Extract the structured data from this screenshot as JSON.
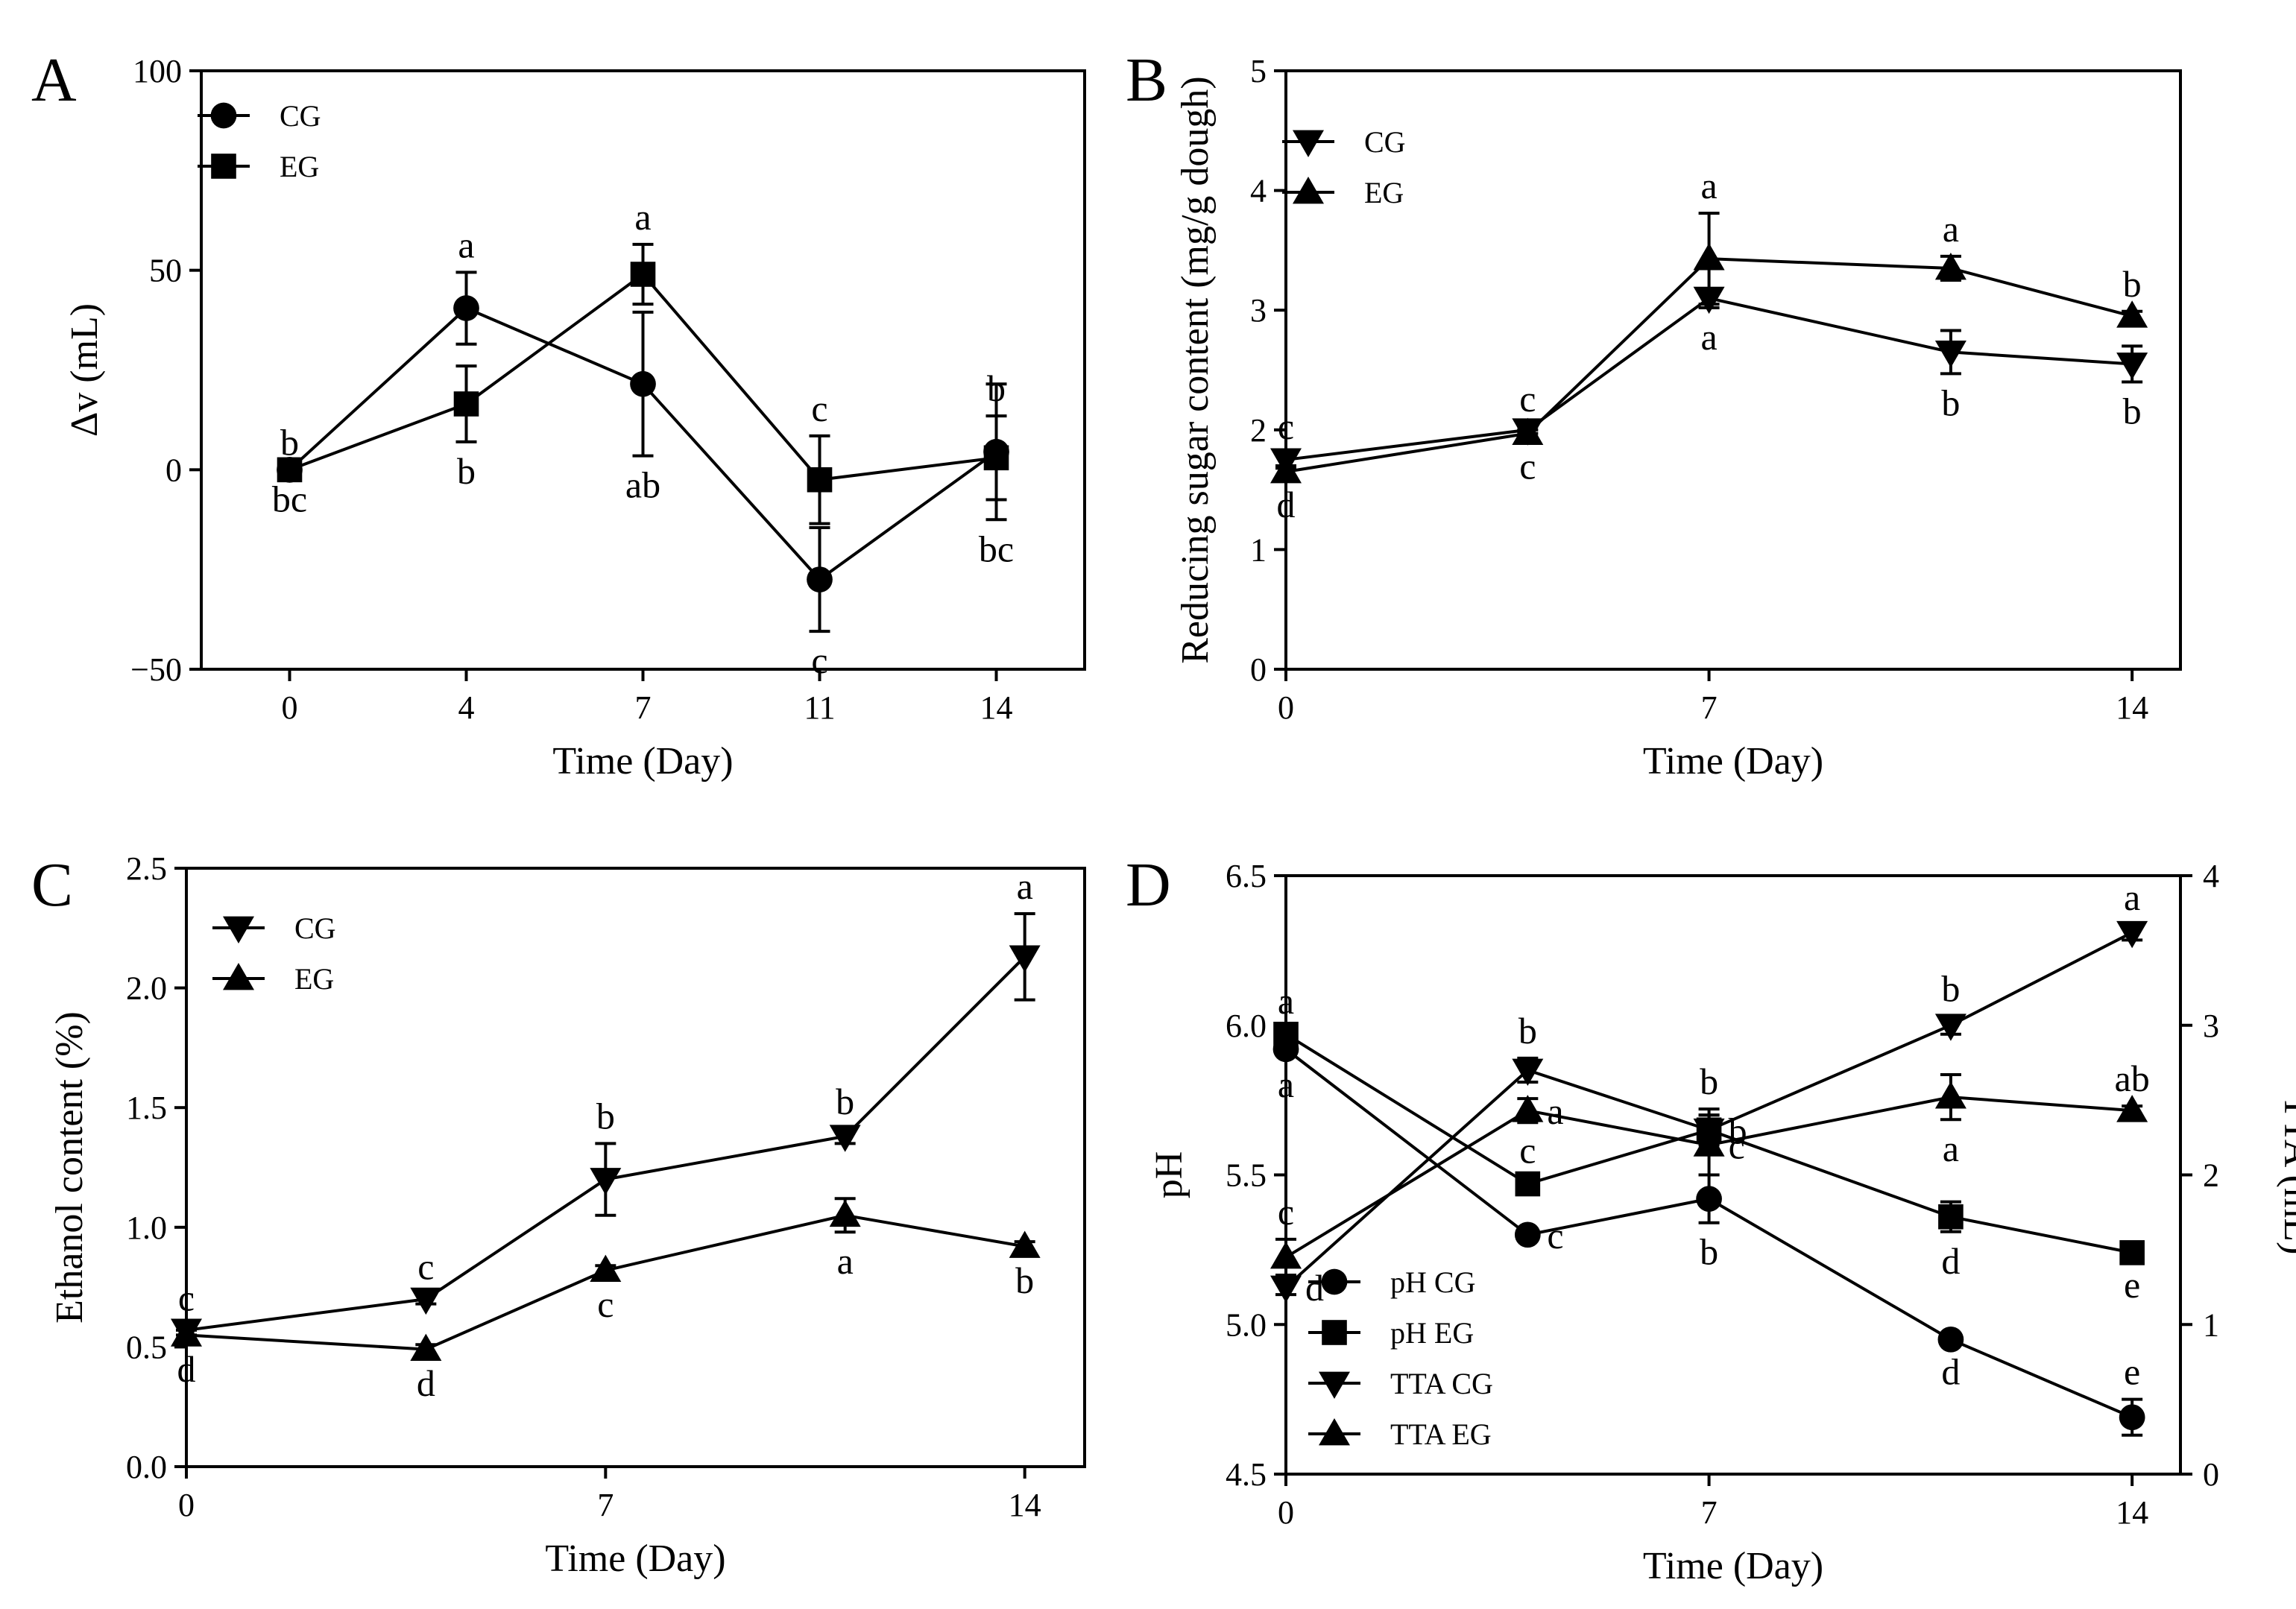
{
  "chart_data": [
    {
      "panel": "A",
      "type": "line",
      "xlabel": "Time (Day)",
      "ylabel": "Δv (mL)",
      "x_ticks": [
        0,
        4,
        7,
        11,
        14
      ],
      "y_ticks": [
        -50,
        0,
        50,
        100
      ],
      "xlim": [
        0,
        4
      ],
      "ylim": [
        -50,
        100
      ],
      "x_mode": "categorical",
      "reference_line": -50,
      "legend": [
        {
          "name": "CG",
          "marker": "circle"
        },
        {
          "name": "EG",
          "marker": "square"
        }
      ],
      "series": [
        {
          "name": "CG",
          "marker": "circle",
          "values": [
            0,
            40.5,
            21.5,
            -27.5,
            4.5
          ],
          "errors": [
            0,
            9,
            18,
            13,
            17
          ],
          "sig": [
            "bc",
            "a",
            "ab",
            "c",
            "bc"
          ],
          "sig_pos": [
            "below",
            "above",
            "below",
            "below",
            "below"
          ]
        },
        {
          "name": "EG",
          "marker": "square",
          "values": [
            0,
            16.5,
            49,
            -2.5,
            3
          ],
          "errors": [
            0,
            9.5,
            7.5,
            11,
            10.5
          ],
          "sig": [
            "b",
            "b",
            "a",
            "c",
            "b"
          ],
          "sig_pos": [
            "above",
            "below",
            "above",
            "above",
            "above"
          ]
        }
      ]
    },
    {
      "panel": "B",
      "type": "line",
      "xlabel": "Time (Day)",
      "ylabel": "Reducing sugar content (mg/g dough)",
      "x_ticks": [
        0,
        7,
        14
      ],
      "y_ticks": [
        0,
        1,
        2,
        3,
        4,
        5
      ],
      "xlim": [
        0,
        14.8
      ],
      "ylim": [
        0,
        5
      ],
      "x_mode": "numeric",
      "legend": [
        {
          "name": "CG",
          "marker": "tri-down"
        },
        {
          "name": "EG",
          "marker": "tri-up"
        }
      ],
      "series": [
        {
          "name": "CG",
          "marker": "tri-down",
          "x": [
            0,
            4,
            7,
            11,
            14
          ],
          "values": [
            1.75,
            2.0,
            3.1,
            2.65,
            2.55
          ],
          "errors": [
            0.05,
            0.03,
            0.08,
            0.18,
            0.15
          ],
          "sig": [
            "c",
            "c",
            "a",
            "b",
            "b"
          ],
          "sig_pos": [
            "above",
            "above",
            "below",
            "below",
            "below"
          ]
        },
        {
          "name": "EG",
          "marker": "tri-up",
          "x": [
            0,
            4,
            7,
            11,
            14
          ],
          "values": [
            1.65,
            1.97,
            3.43,
            3.35,
            2.95
          ],
          "errors": [
            0.03,
            0.03,
            0.38,
            0.1,
            0.04
          ],
          "sig": [
            "d",
            "c",
            "a",
            "a",
            "b"
          ],
          "sig_pos": [
            "below",
            "below",
            "above",
            "above",
            "above"
          ]
        }
      ]
    },
    {
      "panel": "C",
      "type": "line",
      "xlabel": "Time (Day)",
      "ylabel": "Ethanol content (%)",
      "x_ticks": [
        0,
        7,
        14
      ],
      "y_ticks": [
        0.0,
        0.5,
        1.0,
        1.5,
        2.0,
        2.5
      ],
      "xlim": [
        0,
        15
      ],
      "ylim": [
        0,
        2.5
      ],
      "x_mode": "numeric",
      "legend": [
        {
          "name": "CG",
          "marker": "tri-down"
        },
        {
          "name": "EG",
          "marker": "tri-up"
        }
      ],
      "series": [
        {
          "name": "CG",
          "marker": "tri-down",
          "x": [
            0,
            4,
            7,
            11,
            14
          ],
          "values": [
            0.57,
            0.7,
            1.2,
            1.38,
            2.13
          ],
          "errors": [
            0.02,
            0.02,
            0.15,
            0.03,
            0.18
          ],
          "sig": [
            "c",
            "c",
            "b",
            "b",
            "a"
          ],
          "sig_pos": [
            "above",
            "above",
            "above",
            "above",
            "above"
          ]
        },
        {
          "name": "EG",
          "marker": "tri-up",
          "x": [
            0,
            4,
            7,
            11,
            14
          ],
          "values": [
            0.55,
            0.49,
            0.82,
            1.05,
            0.92
          ],
          "errors": [
            0.02,
            0.02,
            0.02,
            0.07,
            0.02
          ],
          "sig": [
            "d",
            "d",
            "c",
            "a",
            "b"
          ],
          "sig_pos": [
            "below",
            "below",
            "below",
            "below",
            "below"
          ]
        }
      ]
    },
    {
      "panel": "D",
      "type": "line",
      "xlabel": "Time (Day)",
      "ylabel": "pH",
      "ylabel_right": "TTA (mL)",
      "x_ticks": [
        0,
        7,
        14
      ],
      "y_ticks": [
        4.5,
        5.0,
        5.5,
        6.0,
        6.5
      ],
      "y_ticks_right": [
        0,
        1,
        2,
        3,
        4
      ],
      "xlim": [
        0,
        14.8
      ],
      "ylim": [
        4.5,
        6.5
      ],
      "ylim_right": [
        0,
        4
      ],
      "x_mode": "numeric",
      "legend": [
        {
          "name": "pH CG",
          "marker": "circle"
        },
        {
          "name": "pH EG",
          "marker": "square"
        },
        {
          "name": "TTA CG",
          "marker": "tri-down"
        },
        {
          "name": "TTA EG",
          "marker": "tri-up"
        }
      ],
      "series": [
        {
          "name": "pH CG",
          "marker": "circle",
          "axis": "left",
          "x": [
            0,
            4,
            7,
            11,
            14
          ],
          "values": [
            5.92,
            5.3,
            5.42,
            4.95,
            4.69
          ],
          "errors": [
            0.02,
            0.02,
            0.08,
            0.01,
            0.06
          ],
          "sig": [
            "a",
            "c",
            "b",
            "d",
            "e"
          ],
          "sig_pos": [
            "below",
            "right",
            "below",
            "below",
            "above"
          ]
        },
        {
          "name": "pH EG",
          "marker": "square",
          "axis": "left",
          "x": [
            0,
            4,
            7,
            11,
            14
          ],
          "values": [
            5.97,
            5.47,
            5.65,
            5.36,
            5.24
          ],
          "errors": [
            0.02,
            0.02,
            0.07,
            0.05,
            0.01
          ],
          "sig": [
            "a",
            "c",
            "b",
            "d",
            "e"
          ],
          "sig_pos": [
            "above",
            "above",
            "above",
            "below",
            "below"
          ]
        },
        {
          "name": "TTA CG",
          "marker": "tri-down",
          "axis": "right",
          "x": [
            0,
            4,
            7,
            11,
            14
          ],
          "values": [
            1.25,
            2.7,
            2.3,
            3.0,
            3.62
          ],
          "errors": [
            0.05,
            0.08,
            0.1,
            0.06,
            0.05
          ],
          "sig": [
            "d",
            "b",
            "b",
            "b",
            "a"
          ],
          "sig_pos": [
            "right",
            "above",
            "right",
            "above",
            "above"
          ]
        },
        {
          "name": "TTA EG",
          "marker": "tri-up",
          "axis": "right",
          "x": [
            0,
            4,
            7,
            11,
            14
          ],
          "values": [
            1.45,
            2.43,
            2.2,
            2.52,
            2.43
          ],
          "errors": [
            0.12,
            0.08,
            0.2,
            0.15,
            0.03
          ],
          "sig": [
            "c",
            "a",
            "c",
            "a",
            "ab"
          ],
          "sig_pos": [
            "above",
            "right",
            "right",
            "below",
            "above"
          ]
        }
      ]
    }
  ]
}
